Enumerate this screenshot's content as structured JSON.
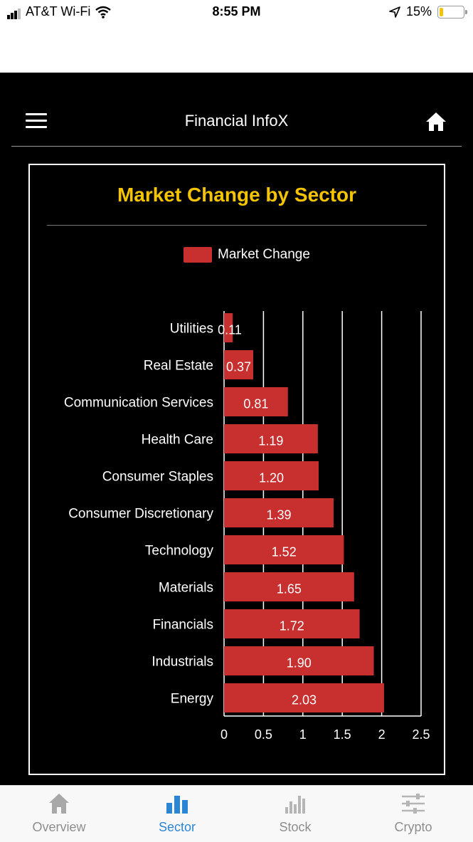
{
  "status_bar": {
    "carrier": "AT&T Wi-Fi",
    "time": "8:55 PM",
    "battery": "15%",
    "battery_level": 0.15
  },
  "header": {
    "title": "Financial InfoX"
  },
  "chart_data": {
    "type": "bar",
    "orientation": "horizontal",
    "title": "Market Change by Sector",
    "legend": [
      "Market Change"
    ],
    "categories": [
      "Utilities",
      "Real Estate",
      "Communication Services",
      "Health Care",
      "Consumer Staples",
      "Consumer Discretionary",
      "Technology",
      "Materials",
      "Financials",
      "Industrials",
      "Energy"
    ],
    "values": [
      0.11,
      0.37,
      0.81,
      1.19,
      1.2,
      1.39,
      1.52,
      1.65,
      1.72,
      1.9,
      2.03
    ],
    "labels": [
      "0.11",
      "0.37",
      "0.81",
      "1.19",
      "1.20",
      "1.39",
      "1.52",
      "1.65",
      "1.72",
      "1.90",
      "2.03"
    ],
    "xticks": [
      "0",
      "0.5",
      "1",
      "1.5",
      "2",
      "2.5"
    ],
    "xlim": [
      0,
      2.5
    ],
    "grid": true,
    "bar_color": "#c83030"
  },
  "nav": {
    "items": [
      {
        "label": "Overview"
      },
      {
        "label": "Sector"
      },
      {
        "label": "Stock"
      },
      {
        "label": "Crypto"
      }
    ],
    "active": "Sector",
    "active_color": "#2a86d4",
    "inactive_color": "#8e8e8e"
  }
}
